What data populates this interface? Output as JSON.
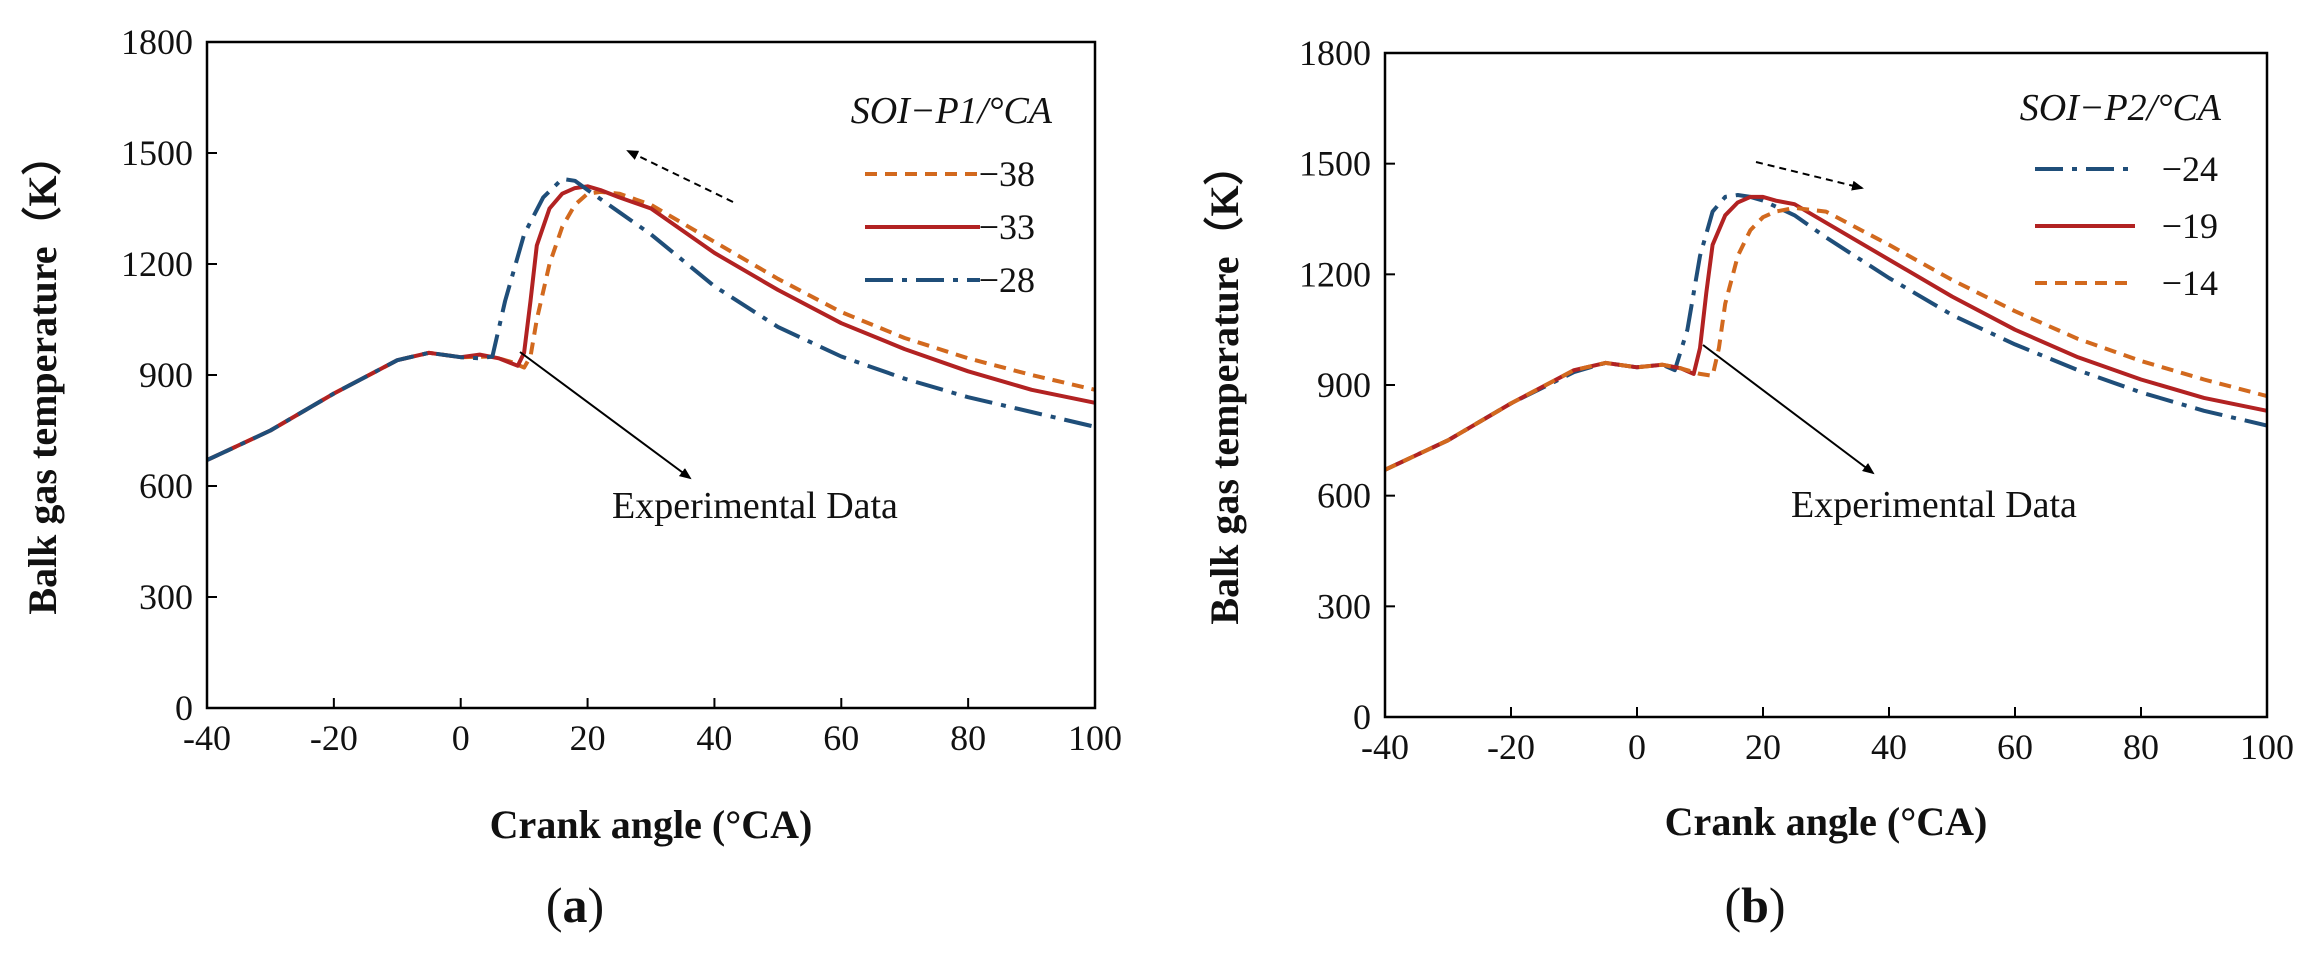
{
  "colors": {
    "orange": "#D2691E",
    "red": "#B22222",
    "blue": "#1F4E79",
    "axis": "#000000"
  },
  "chart_data": [
    {
      "type": "line",
      "panel_label": "(a)",
      "panel_letter": "a",
      "xlabel": "Crank angle (°CA)",
      "ylabel": "Balk  gas temperature（K）",
      "xlim": [
        -40,
        100
      ],
      "ylim": [
        0,
        1800
      ],
      "xticks": [
        "-40",
        "-20",
        "0",
        "20",
        "40",
        "60",
        "80",
        "100"
      ],
      "yticks": [
        "0",
        "300",
        "600",
        "900",
        "1200",
        "1500",
        "1800"
      ],
      "legend_title": "SOI−P1/°CA",
      "legend_position": "top-right",
      "annotation": "Experimental Data",
      "arrow_direction": "left",
      "series": [
        {
          "name": "−38",
          "style": "dashed",
          "color": "orange",
          "x": [
            -40,
            -30,
            -20,
            -10,
            -5,
            0,
            5,
            8,
            10,
            11,
            12,
            14,
            16,
            18,
            20,
            22,
            25,
            30,
            40,
            50,
            60,
            70,
            80,
            90,
            100
          ],
          "y": [
            670,
            750,
            850,
            940,
            960,
            948,
            950,
            935,
            920,
            950,
            1050,
            1200,
            1300,
            1360,
            1390,
            1395,
            1390,
            1360,
            1260,
            1160,
            1070,
            1000,
            945,
            900,
            860
          ]
        },
        {
          "name": "−33",
          "style": "solid",
          "color": "red",
          "x": [
            -40,
            -30,
            -20,
            -10,
            -5,
            0,
            3,
            6,
            9,
            10,
            11,
            12,
            14,
            16,
            18,
            20,
            22,
            25,
            30,
            40,
            50,
            60,
            70,
            80,
            90,
            100
          ],
          "y": [
            670,
            750,
            850,
            940,
            960,
            948,
            955,
            945,
            925,
            960,
            1100,
            1250,
            1350,
            1390,
            1405,
            1410,
            1400,
            1380,
            1350,
            1230,
            1130,
            1040,
            970,
            910,
            860,
            825
          ]
        },
        {
          "name": "−28",
          "style": "dashdot",
          "color": "blue",
          "x": [
            -40,
            -30,
            -20,
            -10,
            -5,
            0,
            3,
            5,
            7,
            10,
            13,
            16,
            18,
            20,
            25,
            30,
            40,
            50,
            60,
            70,
            80,
            90,
            100
          ],
          "y": [
            670,
            750,
            850,
            940,
            960,
            948,
            945,
            950,
            1100,
            1280,
            1380,
            1430,
            1425,
            1400,
            1340,
            1280,
            1140,
            1030,
            950,
            890,
            840,
            800,
            760
          ]
        }
      ]
    },
    {
      "type": "line",
      "panel_label": "(b)",
      "panel_letter": "b",
      "xlabel": "Crank angle (°CA)",
      "ylabel": "Balk gas temperature（K）",
      "xlim": [
        -40,
        100
      ],
      "ylim": [
        0,
        1800
      ],
      "xticks": [
        "-40",
        "-20",
        "0",
        "20",
        "40",
        "60",
        "80",
        "100"
      ],
      "yticks": [
        "0",
        "300",
        "600",
        "900",
        "1200",
        "1500",
        "1800"
      ],
      "legend_title": "SOI−P2/°CA",
      "legend_position": "top-right",
      "annotation": "Experimental Data",
      "arrow_direction": "right",
      "series": [
        {
          "name": "−24",
          "style": "dashdot",
          "color": "blue",
          "x": [
            -40,
            -30,
            -20,
            -10,
            -5,
            0,
            4,
            6,
            8,
            10,
            12,
            14,
            16,
            18,
            20,
            25,
            30,
            40,
            50,
            60,
            70,
            80,
            90,
            100
          ],
          "y": [
            670,
            750,
            850,
            935,
            960,
            948,
            955,
            940,
            1050,
            1250,
            1370,
            1410,
            1415,
            1410,
            1400,
            1360,
            1300,
            1190,
            1090,
            1010,
            940,
            880,
            830,
            790
          ]
        },
        {
          "name": "−19",
          "style": "solid",
          "color": "red",
          "x": [
            -40,
            -30,
            -20,
            -10,
            -5,
            0,
            4,
            7,
            9,
            10,
            11,
            12,
            14,
            16,
            18,
            20,
            22,
            25,
            30,
            40,
            50,
            60,
            70,
            80,
            90,
            100
          ],
          "y": [
            670,
            750,
            850,
            940,
            960,
            948,
            955,
            945,
            930,
            1000,
            1150,
            1280,
            1360,
            1395,
            1410,
            1410,
            1400,
            1390,
            1340,
            1240,
            1140,
            1050,
            975,
            915,
            865,
            830
          ]
        },
        {
          "name": "−14",
          "style": "dashed",
          "color": "orange",
          "x": [
            -40,
            -30,
            -20,
            -10,
            -5,
            0,
            4,
            7,
            10,
            12,
            13,
            14,
            16,
            18,
            20,
            22,
            25,
            30,
            40,
            50,
            60,
            70,
            80,
            90,
            100
          ],
          "y": [
            670,
            750,
            850,
            940,
            960,
            948,
            955,
            945,
            930,
            925,
            1000,
            1120,
            1250,
            1320,
            1355,
            1370,
            1380,
            1370,
            1280,
            1185,
            1100,
            1025,
            965,
            915,
            870
          ]
        }
      ]
    }
  ]
}
